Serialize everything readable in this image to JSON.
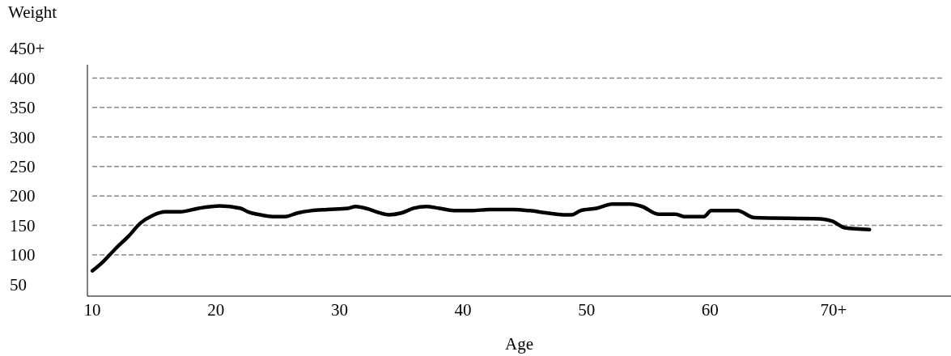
{
  "chart_data": {
    "type": "line",
    "xlabel": "Age",
    "ylabel": "Weight",
    "xlim": [
      9.6,
      79.5
    ],
    "xticks": [
      10,
      20,
      30,
      40,
      50,
      60,
      {
        "value": 70,
        "label": "70+"
      }
    ],
    "ylim": [
      30,
      450
    ],
    "yticks": [
      50,
      100,
      150,
      200,
      250,
      300,
      350,
      400,
      {
        "value": 450,
        "label": "450+"
      }
    ],
    "grid": "y",
    "marker": "none",
    "line_style": "solid",
    "series": [
      {
        "color": "#000000",
        "x": [
          10,
          10.9,
          11.9,
          12.9,
          13.9,
          14.9,
          15.9,
          17.1,
          18.6,
          20.3,
          22.0,
          22.6,
          23.6,
          24.6,
          25.6,
          26.6,
          27.7,
          29.0,
          30.7,
          31.3,
          32.3,
          33.0,
          34.0,
          35.0,
          36.0,
          37.0,
          38.1,
          39.4,
          40.7,
          42.1,
          44.1,
          45.4,
          46.8,
          48.1,
          48.8,
          49.5,
          50.8,
          52.1,
          53.5,
          54.5,
          55.8,
          57.2,
          57.9,
          59.5,
          60.1,
          62.2,
          63.6,
          68.9,
          69.9,
          70.9,
          72.9
        ],
        "values": [
          73,
          89,
          111,
          131,
          154,
          167,
          173,
          173,
          179,
          183,
          179,
          173,
          168,
          165,
          165,
          171,
          175,
          177,
          179,
          182,
          178,
          173,
          168,
          171,
          179,
          182,
          179,
          175,
          175,
          177,
          177,
          175,
          171,
          168,
          168,
          175,
          179,
          186,
          186,
          182,
          169,
          169,
          165,
          165,
          175,
          175,
          163,
          161,
          157,
          146,
          143
        ]
      }
    ]
  }
}
